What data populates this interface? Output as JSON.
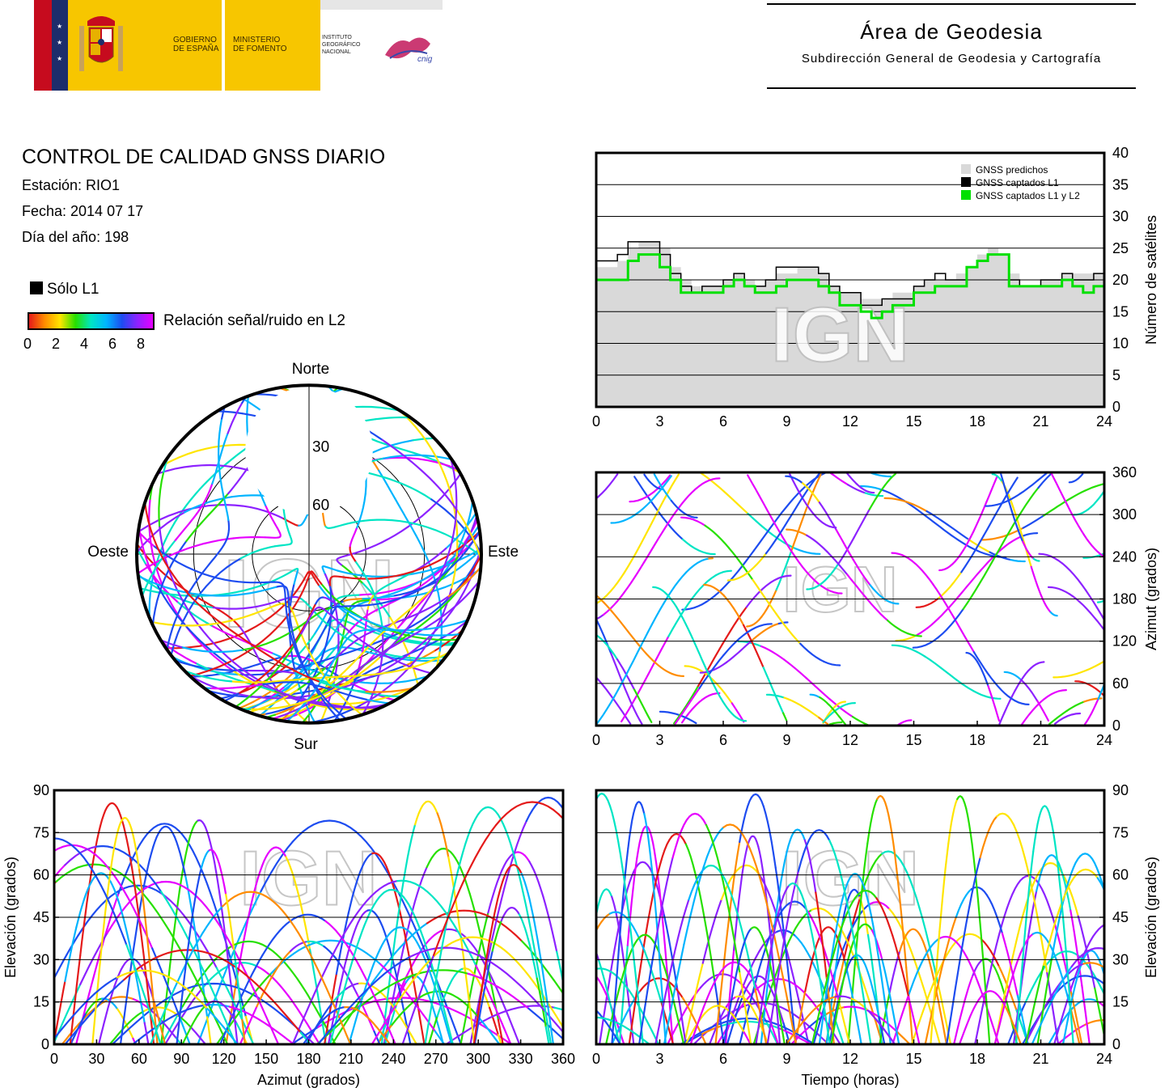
{
  "header": {
    "gob_line1": "GOBIERNO",
    "gob_line2": "DE ESPAÑA",
    "min_line1": "MINISTERIO",
    "min_line2": "DE FOMENTO",
    "inst_line1": "INSTITUTO",
    "inst_line2": "GEOGRÁFICO",
    "inst_line3": "NACIONAL",
    "cnig": "cnig",
    "area_title": "Área de Geodesia",
    "area_subtitle": "Subdirección General de Geodesia y Cartografía"
  },
  "info": {
    "title": "CONTROL DE CALIDAD GNSS DIARIO",
    "station": "Estación: RIO1",
    "date": "Fecha: 2014 07 17",
    "doy": "Día del año: 198",
    "solo_l1": "Sólo L1",
    "snr_label": "Relación señal/ruido en L2",
    "snr_ticks": [
      "0",
      "2",
      "4",
      "6",
      "8"
    ]
  },
  "colors": {
    "snr_scale": [
      "#e41a1a",
      "#ff8c00",
      "#ffe500",
      "#26e000",
      "#00e5c4",
      "#00b4ff",
      "#1d4cf0",
      "#8d22ff",
      "#e600ff"
    ],
    "predicted": "#d9d9d9",
    "l1": "#000000",
    "l1l2": "#00e000"
  },
  "watermark": "IGN",
  "chart_data": [
    {
      "type": "area",
      "ylabel": "Número de satélites",
      "xlim": [
        0,
        24
      ],
      "ylim": [
        0,
        40
      ],
      "xticks": [
        "0",
        "3",
        "6",
        "9",
        "12",
        "15",
        "18",
        "21",
        "24"
      ],
      "yticks": [
        "0",
        "5",
        "10",
        "15",
        "20",
        "25",
        "30",
        "35",
        "40"
      ],
      "grid": true,
      "legend": [
        "GNSS predichos",
        "GNSS captados L1",
        "GNSS captados L1 y L2"
      ],
      "legend_position": "top-right",
      "x": [
        0,
        0.5,
        1,
        1.5,
        2,
        2.5,
        3,
        3.5,
        4,
        4.5,
        5,
        5.5,
        6,
        6.5,
        7,
        7.5,
        8,
        8.5,
        9,
        9.5,
        10,
        10.5,
        11,
        11.5,
        12,
        12.5,
        13,
        13.5,
        14,
        14.5,
        15,
        15.5,
        16,
        16.5,
        17,
        17.5,
        18,
        18.5,
        19,
        19.5,
        20,
        20.5,
        21,
        21.5,
        22,
        22.5,
        23,
        23.5,
        24
      ],
      "series": [
        {
          "name": "GNSS predichos",
          "values": [
            22,
            22,
            23,
            25,
            26,
            26,
            25,
            22,
            20,
            19,
            19,
            19,
            20,
            21,
            20,
            19,
            20,
            21,
            21,
            22,
            22,
            21,
            19,
            18,
            18,
            17,
            17,
            17,
            18,
            18,
            19,
            20,
            20,
            20,
            21,
            22,
            24,
            25,
            24,
            21,
            19,
            19,
            20,
            20,
            21,
            21,
            21,
            21,
            22
          ]
        },
        {
          "name": "GNSS captados L1",
          "values": [
            23,
            23,
            24,
            26,
            26,
            26,
            24,
            21,
            19,
            18,
            19,
            19,
            20,
            21,
            19,
            19,
            20,
            22,
            22,
            22,
            22,
            21,
            19,
            18,
            18,
            16,
            16,
            17,
            17,
            17,
            19,
            20,
            21,
            20,
            20,
            22,
            23,
            24,
            24,
            20,
            19,
            19,
            20,
            20,
            21,
            20,
            20,
            21,
            22
          ]
        },
        {
          "name": "GNSS captados L1 y L2",
          "values": [
            20,
            20,
            20,
            23,
            24,
            24,
            22,
            20,
            18,
            18,
            18,
            18,
            19,
            20,
            19,
            18,
            18,
            19,
            20,
            20,
            20,
            19,
            18,
            16,
            16,
            15,
            14,
            15,
            16,
            16,
            18,
            18,
            19,
            19,
            19,
            22,
            23,
            24,
            24,
            19,
            19,
            19,
            19,
            19,
            20,
            19,
            18,
            19,
            21
          ]
        }
      ]
    },
    {
      "type": "scatter",
      "ylabel": "Azimut (grados)",
      "xlim": [
        0,
        24
      ],
      "ylim": [
        0,
        360
      ],
      "xticks": [
        "0",
        "3",
        "6",
        "9",
        "12",
        "15",
        "18",
        "21",
        "24"
      ],
      "yticks": [
        "0",
        "60",
        "120",
        "180",
        "240",
        "300",
        "360"
      ],
      "grid": true
    },
    {
      "type": "scatter",
      "polar": true,
      "direction_labels": {
        "north": "Norte",
        "south": "Sur",
        "east": "Este",
        "west": "Oeste"
      },
      "ring_labels": [
        "30",
        "60"
      ]
    },
    {
      "type": "scatter",
      "xlabel": "Azimut (grados)",
      "ylabel": "Elevación (grados)",
      "xlim": [
        0,
        360
      ],
      "ylim": [
        0,
        90
      ],
      "xticks": [
        "0",
        "30",
        "60",
        "90",
        "120",
        "150",
        "180",
        "210",
        "240",
        "270",
        "300",
        "330",
        "360"
      ],
      "yticks": [
        "0",
        "15",
        "30",
        "45",
        "60",
        "75",
        "90"
      ],
      "grid": true
    },
    {
      "type": "scatter",
      "xlabel": "Tiempo (horas)",
      "ylabel": "Elevación (grados)",
      "xlim": [
        0,
        24
      ],
      "ylim": [
        0,
        90
      ],
      "xticks": [
        "0",
        "3",
        "6",
        "9",
        "12",
        "15",
        "18",
        "21",
        "24"
      ],
      "yticks": [
        "0",
        "15",
        "30",
        "45",
        "60",
        "75",
        "90"
      ],
      "grid": true
    }
  ]
}
